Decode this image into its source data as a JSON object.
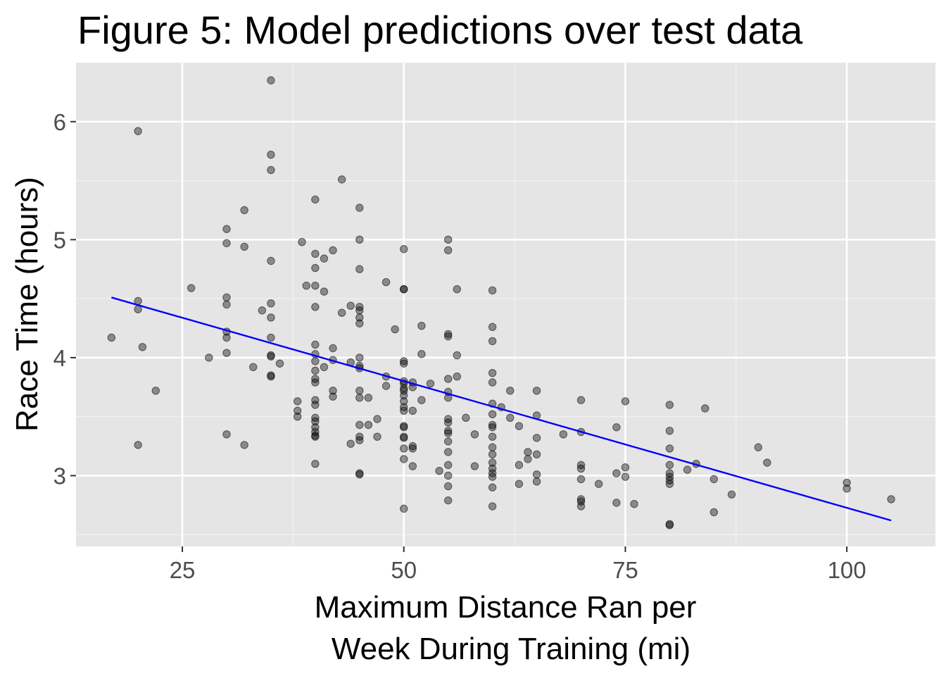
{
  "chart_data": {
    "type": "scatter",
    "title": "Figure 5: Model predictions over test data",
    "xlabel_lines": [
      "Maximum Distance Ran per",
      "Week During Training (mi)"
    ],
    "ylabel": "Race Time (hours)",
    "xlim": [
      13,
      110
    ],
    "ylim": [
      2.4,
      6.5
    ],
    "x_ticks": [
      25,
      50,
      75,
      100
    ],
    "x_tick_labels": [
      "25",
      "50",
      "75",
      "100"
    ],
    "y_ticks": [
      3,
      4,
      5,
      6
    ],
    "y_tick_labels": [
      "3",
      "4",
      "5",
      "6"
    ],
    "grid": true,
    "background_color": "#e5e5e5",
    "point_color": "#000000",
    "point_opacity": 0.4,
    "line_color": "#0000ff",
    "fit_line": {
      "x": [
        17,
        105
      ],
      "y": [
        4.51,
        2.62
      ]
    },
    "points": [
      [
        17,
        4.17
      ],
      [
        20,
        5.92
      ],
      [
        20,
        4.48
      ],
      [
        20,
        4.41
      ],
      [
        20,
        3.26
      ],
      [
        20.5,
        4.09
      ],
      [
        22,
        3.72
      ],
      [
        26,
        4.59
      ],
      [
        28,
        4.0
      ],
      [
        30,
        5.09
      ],
      [
        30,
        4.97
      ],
      [
        30,
        4.51
      ],
      [
        30,
        4.45
      ],
      [
        30,
        4.22
      ],
      [
        30,
        4.17
      ],
      [
        30,
        4.04
      ],
      [
        30,
        3.35
      ],
      [
        32,
        5.25
      ],
      [
        32,
        4.94
      ],
      [
        32,
        3.26
      ],
      [
        33,
        3.92
      ],
      [
        34,
        4.4
      ],
      [
        35,
        6.35
      ],
      [
        35,
        5.72
      ],
      [
        35,
        5.59
      ],
      [
        35,
        4.82
      ],
      [
        35,
        4.46
      ],
      [
        35,
        4.34
      ],
      [
        35,
        4.17
      ],
      [
        35,
        4.02
      ],
      [
        35,
        4.01
      ],
      [
        35,
        3.84
      ],
      [
        35,
        3.85
      ],
      [
        36,
        3.95
      ],
      [
        38,
        3.63
      ],
      [
        38,
        3.55
      ],
      [
        38,
        3.5
      ],
      [
        38.5,
        4.98
      ],
      [
        39,
        4.61
      ],
      [
        40,
        5.34
      ],
      [
        40,
        4.88
      ],
      [
        40,
        4.76
      ],
      [
        40,
        4.61
      ],
      [
        40,
        4.43
      ],
      [
        40,
        4.11
      ],
      [
        40,
        4.03
      ],
      [
        40,
        3.97
      ],
      [
        40,
        3.89
      ],
      [
        40,
        3.82
      ],
      [
        40,
        3.79
      ],
      [
        40,
        3.64
      ],
      [
        40,
        3.6
      ],
      [
        40,
        3.49
      ],
      [
        40,
        3.46
      ],
      [
        40,
        3.41
      ],
      [
        40,
        3.37
      ],
      [
        40,
        3.33
      ],
      [
        40,
        3.34
      ],
      [
        40,
        3.1
      ],
      [
        41,
        4.84
      ],
      [
        41,
        4.56
      ],
      [
        41,
        3.92
      ],
      [
        42,
        4.91
      ],
      [
        42,
        4.08
      ],
      [
        42,
        3.98
      ],
      [
        42,
        3.72
      ],
      [
        42,
        3.67
      ],
      [
        43,
        5.51
      ],
      [
        43,
        4.38
      ],
      [
        44,
        4.44
      ],
      [
        44,
        3.96
      ],
      [
        44,
        3.27
      ],
      [
        45,
        5.27
      ],
      [
        45,
        5.0
      ],
      [
        45,
        4.75
      ],
      [
        45,
        4.43
      ],
      [
        45,
        4.4
      ],
      [
        45,
        4.34
      ],
      [
        45,
        4.29
      ],
      [
        45,
        4.0
      ],
      [
        45,
        3.93
      ],
      [
        45,
        3.91
      ],
      [
        45,
        3.72
      ],
      [
        45,
        3.66
      ],
      [
        45,
        3.43
      ],
      [
        45,
        3.33
      ],
      [
        45,
        3.3
      ],
      [
        45,
        3.02
      ],
      [
        45,
        3.01
      ],
      [
        46,
        3.66
      ],
      [
        46,
        3.43
      ],
      [
        47,
        3.48
      ],
      [
        47,
        3.33
      ],
      [
        48,
        4.64
      ],
      [
        48,
        3.84
      ],
      [
        48,
        3.76
      ],
      [
        49,
        4.24
      ],
      [
        50,
        4.92
      ],
      [
        50,
        4.58
      ],
      [
        50,
        4.58
      ],
      [
        50,
        3.97
      ],
      [
        50,
        3.95
      ],
      [
        50,
        3.8
      ],
      [
        50,
        3.78
      ],
      [
        50,
        3.74
      ],
      [
        50,
        3.72
      ],
      [
        50,
        3.68
      ],
      [
        50,
        3.63
      ],
      [
        50,
        3.58
      ],
      [
        50,
        3.55
      ],
      [
        50,
        3.42
      ],
      [
        50,
        3.41
      ],
      [
        50,
        3.33
      ],
      [
        50,
        3.32
      ],
      [
        50,
        3.23
      ],
      [
        50,
        3.14
      ],
      [
        50,
        2.72
      ],
      [
        51,
        3.79
      ],
      [
        51,
        3.75
      ],
      [
        51,
        3.55
      ],
      [
        51,
        3.25
      ],
      [
        51,
        3.23
      ],
      [
        51,
        3.08
      ],
      [
        52,
        4.27
      ],
      [
        52,
        4.03
      ],
      [
        52,
        3.64
      ],
      [
        53,
        3.78
      ],
      [
        54,
        3.04
      ],
      [
        55,
        5.0
      ],
      [
        55,
        4.91
      ],
      [
        55,
        4.2
      ],
      [
        55,
        4.18
      ],
      [
        55,
        3.82
      ],
      [
        55,
        3.71
      ],
      [
        55,
        3.66
      ],
      [
        55,
        3.48
      ],
      [
        55,
        3.45
      ],
      [
        55,
        3.38
      ],
      [
        55,
        3.36
      ],
      [
        55,
        3.29
      ],
      [
        55,
        3.2
      ],
      [
        55,
        3.09
      ],
      [
        55,
        3.0
      ],
      [
        55,
        2.91
      ],
      [
        55,
        2.79
      ],
      [
        56,
        4.58
      ],
      [
        56,
        4.02
      ],
      [
        56,
        3.84
      ],
      [
        57,
        3.49
      ],
      [
        58,
        3.35
      ],
      [
        58,
        3.08
      ],
      [
        60,
        4.57
      ],
      [
        60,
        4.26
      ],
      [
        60,
        4.14
      ],
      [
        60,
        3.87
      ],
      [
        60,
        3.79
      ],
      [
        60,
        3.61
      ],
      [
        60,
        3.52
      ],
      [
        60,
        3.43
      ],
      [
        60,
        3.41
      ],
      [
        60,
        3.33
      ],
      [
        60,
        3.24
      ],
      [
        60,
        3.18
      ],
      [
        60,
        3.11
      ],
      [
        60,
        3.06
      ],
      [
        60,
        3.02
      ],
      [
        60,
        2.99
      ],
      [
        60,
        2.9
      ],
      [
        60,
        2.74
      ],
      [
        61,
        3.58
      ],
      [
        62,
        3.72
      ],
      [
        62,
        3.49
      ],
      [
        63,
        3.42
      ],
      [
        63,
        3.09
      ],
      [
        63,
        2.93
      ],
      [
        64,
        3.2
      ],
      [
        64,
        3.14
      ],
      [
        65,
        3.72
      ],
      [
        65,
        3.51
      ],
      [
        65,
        3.32
      ],
      [
        65,
        3.18
      ],
      [
        65,
        3.01
      ],
      [
        65,
        2.95
      ],
      [
        68,
        3.35
      ],
      [
        70,
        3.64
      ],
      [
        70,
        3.37
      ],
      [
        70,
        3.09
      ],
      [
        70,
        3.06
      ],
      [
        70,
        2.97
      ],
      [
        70,
        2.8
      ],
      [
        70,
        2.78
      ],
      [
        70,
        2.74
      ],
      [
        72,
        2.93
      ],
      [
        74,
        3.41
      ],
      [
        74,
        3.02
      ],
      [
        74,
        2.77
      ],
      [
        75,
        3.63
      ],
      [
        75,
        3.07
      ],
      [
        75,
        2.99
      ],
      [
        76,
        2.76
      ],
      [
        80,
        3.6
      ],
      [
        80,
        3.38
      ],
      [
        80,
        3.23
      ],
      [
        80,
        3.09
      ],
      [
        80,
        3.02
      ],
      [
        80,
        2.99
      ],
      [
        80,
        2.96
      ],
      [
        80,
        2.93
      ],
      [
        80,
        2.59
      ],
      [
        80,
        2.58
      ],
      [
        82,
        3.05
      ],
      [
        83,
        3.1
      ],
      [
        84,
        3.57
      ],
      [
        85,
        2.97
      ],
      [
        85,
        2.69
      ],
      [
        87,
        2.84
      ],
      [
        90,
        3.24
      ],
      [
        91,
        3.11
      ],
      [
        100,
        2.94
      ],
      [
        100,
        2.89
      ],
      [
        105,
        2.8
      ]
    ]
  }
}
